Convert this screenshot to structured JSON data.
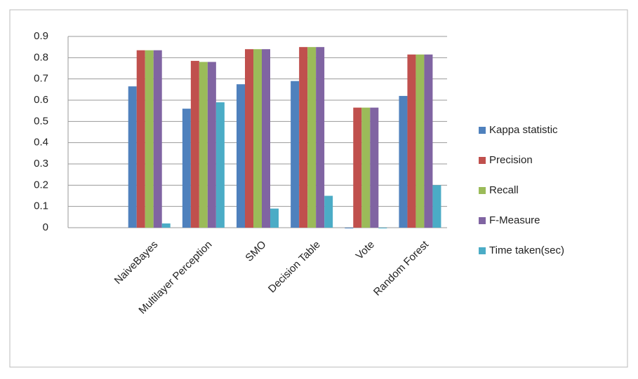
{
  "chart_data": {
    "type": "bar",
    "categories": [
      null,
      "NaiveBayes",
      "Multilayer Perception",
      "SMO",
      "Decision Table",
      "Vote",
      "Random Forest"
    ],
    "series": [
      {
        "name": "Kappa statistic",
        "color": "#4f81bd",
        "values": [
          null,
          0.665,
          0.56,
          0.675,
          0.69,
          0,
          0.62
        ]
      },
      {
        "name": "Precision",
        "color": "#c0504d",
        "values": [
          null,
          0.835,
          0.785,
          0.84,
          0.85,
          0.565,
          0.815
        ]
      },
      {
        "name": "Recall",
        "color": "#9bbb59",
        "values": [
          null,
          0.835,
          0.78,
          0.84,
          0.85,
          0.565,
          0.815
        ]
      },
      {
        "name": "F-Measure",
        "color": "#8064a2",
        "values": [
          null,
          0.835,
          0.78,
          0.84,
          0.85,
          0.565,
          0.815
        ]
      },
      {
        "name": "Time taken(sec)",
        "color": "#4bacc6",
        "values": [
          null,
          0.02,
          0.59,
          0.09,
          0.15,
          0,
          0.2
        ]
      }
    ],
    "ylim": [
      0,
      0.9
    ],
    "yticks": [
      0,
      0.1,
      0.2,
      0.3,
      0.4,
      0.5,
      0.6,
      0.7,
      0.8,
      0.9
    ],
    "grid": true,
    "legend": "right"
  }
}
